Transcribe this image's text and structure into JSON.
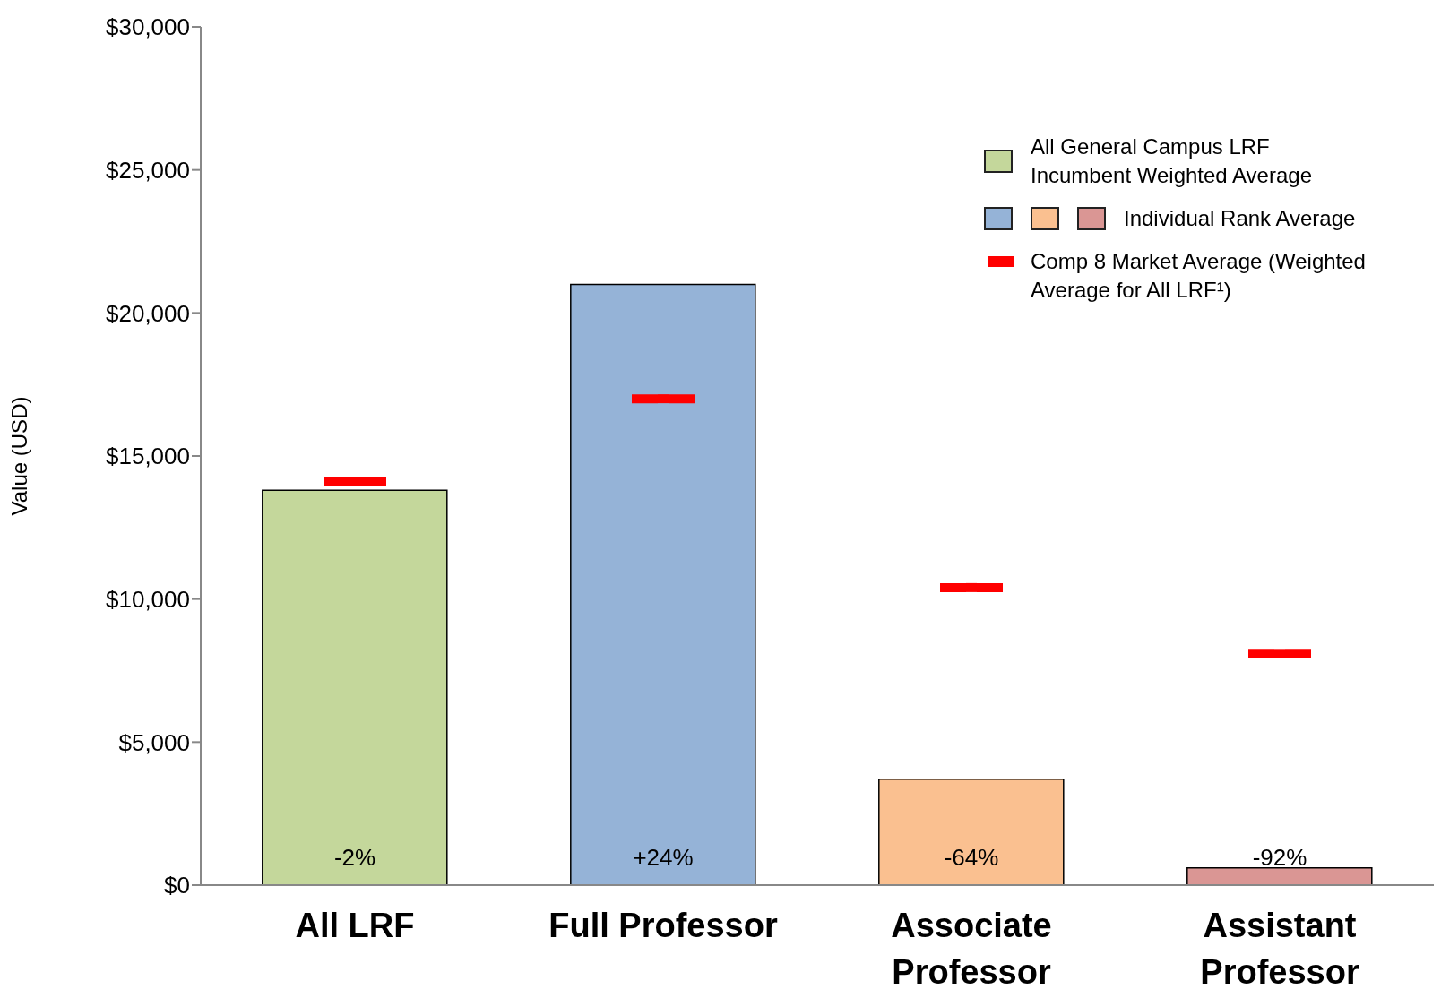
{
  "chart_data": {
    "type": "bar",
    "ylabel": "Value (USD)",
    "categories": [
      "All LRF",
      "Full Professor",
      "Associate Professor",
      "Assistant Professor"
    ],
    "stacked": true,
    "series": [
      {
        "name": "All General Campus LRF Incumbent Weighted Average",
        "color": "#c4d79b",
        "values": [
          13800,
          null,
          null,
          null
        ]
      },
      {
        "name": "Individual Rank Average",
        "colors": [
          null,
          "#95b3d7",
          "#fac090",
          "#da9694"
        ],
        "values": [
          null,
          21000,
          3700,
          600
        ]
      },
      {
        "name": "Comp 8 Market Average (Weighted Average for All LRF¹)",
        "type": "scatter",
        "color": "#ff0000",
        "values": [
          14100,
          17000,
          10400,
          8100
        ]
      }
    ],
    "annotations": [
      "-2%",
      "+24%",
      "-64%",
      "-92%"
    ],
    "grid": false,
    "ylim": [
      0,
      30000
    ],
    "yticks": [
      {
        "value": 0,
        "label": "$0"
      },
      {
        "value": 5000,
        "label": "$5,000"
      },
      {
        "value": 10000,
        "label": "$10,000"
      },
      {
        "value": 15000,
        "label": "$15,000"
      },
      {
        "value": 20000,
        "label": "$20,000"
      },
      {
        "value": 25000,
        "label": "$25,000"
      },
      {
        "value": 30000,
        "label": "$30,000"
      }
    ],
    "legend": "top right"
  }
}
